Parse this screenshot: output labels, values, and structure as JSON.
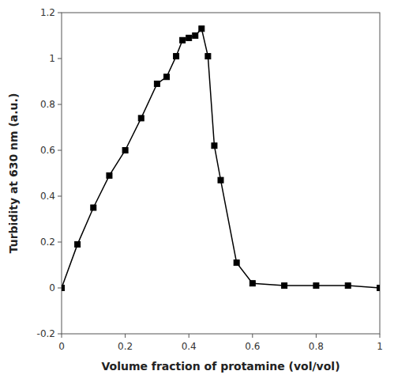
{
  "chart_data": {
    "type": "line",
    "x": [
      0.0,
      0.05,
      0.1,
      0.15,
      0.2,
      0.25,
      0.3,
      0.33,
      0.36,
      0.38,
      0.4,
      0.42,
      0.44,
      0.46,
      0.48,
      0.5,
      0.55,
      0.6,
      0.7,
      0.8,
      0.9,
      1.0
    ],
    "values": [
      0.0,
      0.19,
      0.35,
      0.49,
      0.6,
      0.74,
      0.89,
      0.92,
      1.01,
      1.08,
      1.09,
      1.1,
      1.13,
      1.01,
      0.62,
      0.47,
      0.11,
      0.02,
      0.01,
      0.01,
      0.01,
      0.0
    ],
    "xlabel": "Volume fraction of protamine (vol/vol)",
    "ylabel": "Turbidity at 630 nm (a.u.)",
    "xlim": [
      0,
      1.0
    ],
    "ylim": [
      -0.2,
      1.2
    ],
    "xticks": [
      0,
      0.2,
      0.4,
      0.6,
      0.8,
      1.0
    ],
    "yticks": [
      -0.2,
      0.0,
      0.2,
      0.4,
      0.6,
      0.8,
      1.0,
      1.2
    ],
    "color": "#000000",
    "marker": "square",
    "grid": false
  }
}
